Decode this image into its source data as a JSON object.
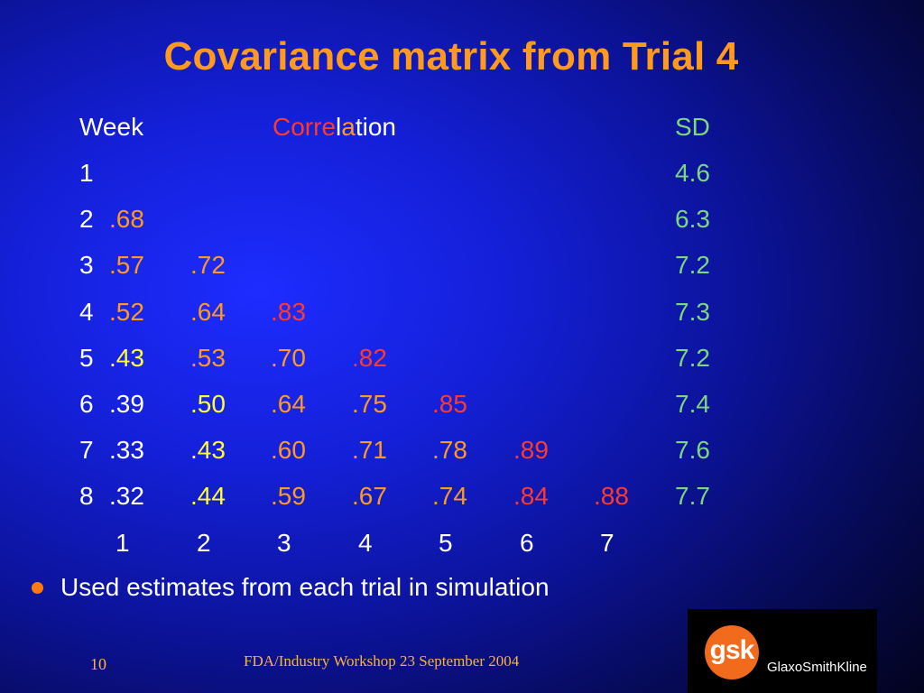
{
  "slide": {
    "title": "Covariance matrix from Trial 4",
    "header": {
      "week": "Week",
      "correlation_segments": [
        {
          "text": "Corre",
          "color": "#ff3a2a"
        },
        {
          "text": "l",
          "color": "#ffffff"
        },
        {
          "text": "a",
          "color": "#ff9a1e"
        },
        {
          "text": "tion",
          "color": "#ffffff"
        }
      ],
      "sd": "SD"
    },
    "rows": [
      {
        "week": "1",
        "values": [],
        "sd": "4.6"
      },
      {
        "week": "2",
        "values": [
          {
            "text": ".68",
            "color": "#ff9a1e"
          }
        ],
        "sd": "6.3"
      },
      {
        "week": "3",
        "values": [
          {
            "text": ".57",
            "color": "#ff9a1e"
          },
          {
            "text": ".72",
            "color": "#ff9a1e"
          }
        ],
        "sd": "7.2"
      },
      {
        "week": "4",
        "values": [
          {
            "text": ".52",
            "color": "#ff9a1e"
          },
          {
            "text": ".64",
            "color": "#ff9a1e"
          },
          {
            "text": ".83",
            "color": "#ff3a2a"
          }
        ],
        "sd": "7.3"
      },
      {
        "week": "5",
        "values": [
          {
            "text": ".43",
            "color": "#ffff33"
          },
          {
            "text": ".53",
            "color": "#ff9a1e"
          },
          {
            "text": ".70",
            "color": "#ff9a1e"
          },
          {
            "text": ".82",
            "color": "#ff3a2a"
          }
        ],
        "sd": "7.2"
      },
      {
        "week": "6",
        "values": [
          {
            "text": ".39",
            "color": "#ffffff"
          },
          {
            "text": ".50",
            "color": "#ffff33"
          },
          {
            "text": ".64",
            "color": "#ff9a1e"
          },
          {
            "text": ".75",
            "color": "#ff9a1e"
          },
          {
            "text": ".85",
            "color": "#ff3a2a"
          }
        ],
        "sd": "7.4"
      },
      {
        "week": "7",
        "values": [
          {
            "text": ".33",
            "color": "#ffffff"
          },
          {
            "text": ".43",
            "color": "#ffff33"
          },
          {
            "text": ".60",
            "color": "#ff9a1e"
          },
          {
            "text": ".71",
            "color": "#ff9a1e"
          },
          {
            "text": ".78",
            "color": "#ff9a1e"
          },
          {
            "text": ".89",
            "color": "#ff3a2a"
          }
        ],
        "sd": "7.6"
      },
      {
        "week": "8",
        "values": [
          {
            "text": ".32",
            "color": "#ffffff"
          },
          {
            "text": ".44",
            "color": "#ffff33"
          },
          {
            "text": ".59",
            "color": "#ff9a1e"
          },
          {
            "text": ".67",
            "color": "#ff9a1e"
          },
          {
            "text": ".74",
            "color": "#ff9a1e"
          },
          {
            "text": ".84",
            "color": "#ff3a2a"
          },
          {
            "text": ".88",
            "color": "#ff3a2a"
          }
        ],
        "sd": "7.7"
      }
    ],
    "column_labels": [
      "1",
      "2",
      "3",
      "4",
      "5",
      "6",
      "7"
    ],
    "bullet": "Used estimates from each trial in simulation",
    "footer": {
      "page_number": "10",
      "text": "FDA/Industry Workshop 23 September 2004"
    },
    "logo": {
      "mark": "gsk",
      "name": "GlaxoSmithKline"
    },
    "colors": {
      "title": "#ff9a1e",
      "sd": "#7ed67e",
      "bullet": "#ff7a10",
      "footer": "#ffb23a",
      "logo_orange": "#f26a1b"
    }
  }
}
